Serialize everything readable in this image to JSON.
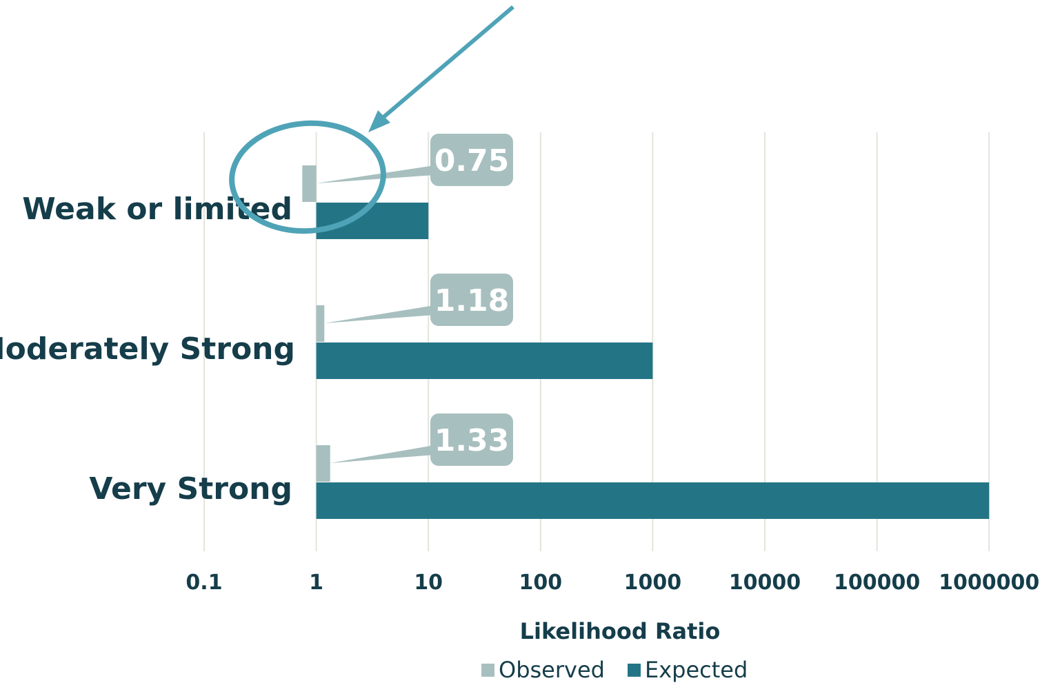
{
  "chart_data": {
    "type": "bar",
    "orientation": "horizontal",
    "x_scale": "log",
    "xlim": [
      0.1,
      1000000
    ],
    "x_ticks": [
      "0.1",
      "1",
      "10",
      "100",
      "1000",
      "10000",
      "100000",
      "1000000"
    ],
    "xlabel": "Likelihood Ratio",
    "ylabel": "",
    "title": "",
    "categories": [
      "Weak or limited",
      "Moderately Strong",
      "Very Strong"
    ],
    "series": [
      {
        "name": "Observed",
        "values": [
          0.75,
          1.18,
          1.33
        ],
        "color": "#a8bfbf"
      },
      {
        "name": "Expected",
        "values": [
          10,
          1000,
          1000000
        ],
        "color": "#237586"
      }
    ],
    "data_labels": [
      "0.75",
      "1.18",
      "1.33"
    ],
    "grid": "vertical",
    "legend": "bottom-center",
    "annotation": {
      "shape": "circle-with-arrow",
      "target": "Weak or limited / Observed",
      "color": "#4fa3b7"
    }
  }
}
